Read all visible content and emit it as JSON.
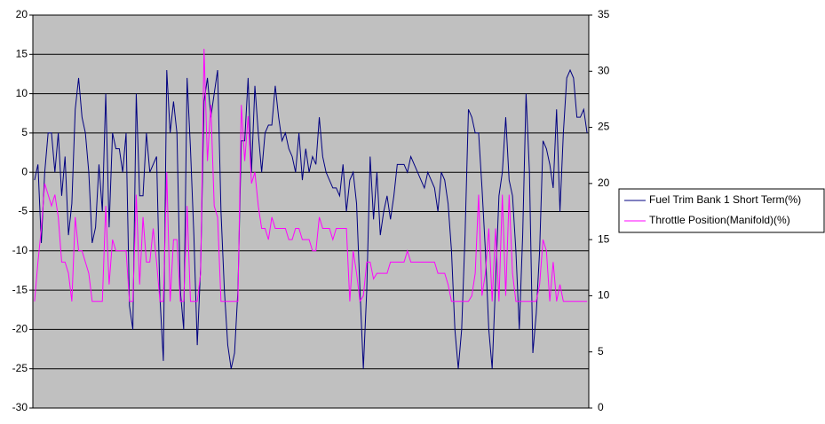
{
  "chart_data": {
    "type": "line",
    "grid": true,
    "legend": "right",
    "background": "#c0c0c0",
    "ylim": [
      -30,
      20
    ],
    "yticks": [
      -30,
      -25,
      -20,
      -15,
      -10,
      -5,
      0,
      5,
      10,
      15,
      20
    ],
    "y2lim": [
      0,
      35
    ],
    "y2ticks": [
      0,
      5,
      10,
      15,
      20,
      25,
      30,
      35
    ],
    "series": [
      {
        "name": "Fuel Trim Bank 1 Short Term(%)",
        "color": "#000080",
        "axis": "y",
        "values": [
          -1,
          1,
          -9,
          0,
          5,
          5,
          0,
          5,
          -3,
          2,
          -8,
          -4,
          8,
          12,
          7,
          5,
          0,
          -9,
          -7,
          1,
          -5,
          10,
          -7,
          5,
          3,
          3,
          0,
          5,
          -17,
          -20,
          10,
          -3,
          -3,
          5,
          0,
          1,
          2,
          -16,
          -24,
          13,
          5,
          9,
          5,
          -15,
          -20,
          12,
          3,
          -8,
          -22,
          -12,
          9,
          12,
          7,
          10,
          13,
          -5,
          -15,
          -22,
          -25,
          -23,
          -15,
          4,
          4,
          12,
          0,
          11,
          5,
          0,
          5,
          6,
          6,
          11,
          7,
          4,
          5,
          3,
          2,
          0,
          5,
          -1,
          3,
          0,
          2,
          1,
          7,
          2,
          0,
          -1,
          -2,
          -2,
          -3,
          1,
          -5,
          -1,
          0,
          -4,
          -15,
          -25,
          -15,
          2,
          -6,
          0,
          -8,
          -5,
          -3,
          -6,
          -3,
          1,
          1,
          1,
          0,
          2,
          1,
          0,
          -1,
          -2,
          0,
          -1,
          -2,
          -5,
          0,
          -1,
          -4,
          -10,
          -20,
          -25,
          -20,
          -8,
          8,
          7,
          5,
          5,
          -2,
          -10,
          -20,
          -25,
          -14,
          -3,
          0,
          7,
          -1,
          -3,
          -10,
          -20,
          -8,
          10,
          0,
          -23,
          -18,
          -10,
          4,
          3,
          1,
          -2,
          8,
          -5,
          5,
          12,
          13,
          12,
          7,
          7,
          8,
          5
        ]
      },
      {
        "name": "Throttle Position(Manifold)(%)",
        "color": "#ff00ff",
        "axis": "y2",
        "values": [
          9.5,
          13,
          16,
          20,
          19,
          18,
          19,
          17,
          13,
          13,
          12,
          9.5,
          17,
          14,
          14,
          13,
          12,
          9.5,
          9.5,
          9.5,
          9.5,
          18,
          11,
          15,
          14,
          14,
          14,
          14,
          9.5,
          9.5,
          19,
          11,
          17,
          13,
          13,
          16,
          13,
          9.5,
          9.5,
          21,
          9.5,
          15,
          15,
          9.5,
          9.5,
          18,
          9.5,
          9.5,
          9.5,
          12,
          32,
          22,
          27,
          18,
          17,
          9.5,
          9.5,
          9.5,
          9.5,
          9.5,
          9.5,
          27,
          22,
          26,
          20,
          21,
          18,
          16,
          16,
          15,
          17,
          16,
          16,
          16,
          16,
          15,
          15,
          16,
          16,
          15,
          15,
          15,
          14,
          14,
          17,
          16,
          16,
          16,
          15,
          16,
          16,
          16,
          16,
          9.5,
          14,
          12,
          9.5,
          10,
          13,
          13,
          11.5,
          12,
          12,
          12,
          12,
          13,
          13,
          13,
          13,
          13,
          14,
          13,
          13,
          13,
          13,
          13,
          13,
          13,
          13,
          12,
          12,
          12,
          11,
          9.5,
          9.5,
          9.5,
          9.5,
          9.5,
          9.5,
          10,
          12,
          19,
          10,
          12,
          16,
          9.5,
          16,
          9.5,
          19,
          10,
          19,
          12,
          9.5,
          9.5,
          9.5,
          9.5,
          9.5,
          9.5,
          9.5,
          11,
          15,
          14,
          9.5,
          13,
          9.5,
          11,
          9.5,
          9.5,
          9.5,
          9.5,
          9.5,
          9.5,
          9.5,
          9.5
        ]
      }
    ]
  }
}
